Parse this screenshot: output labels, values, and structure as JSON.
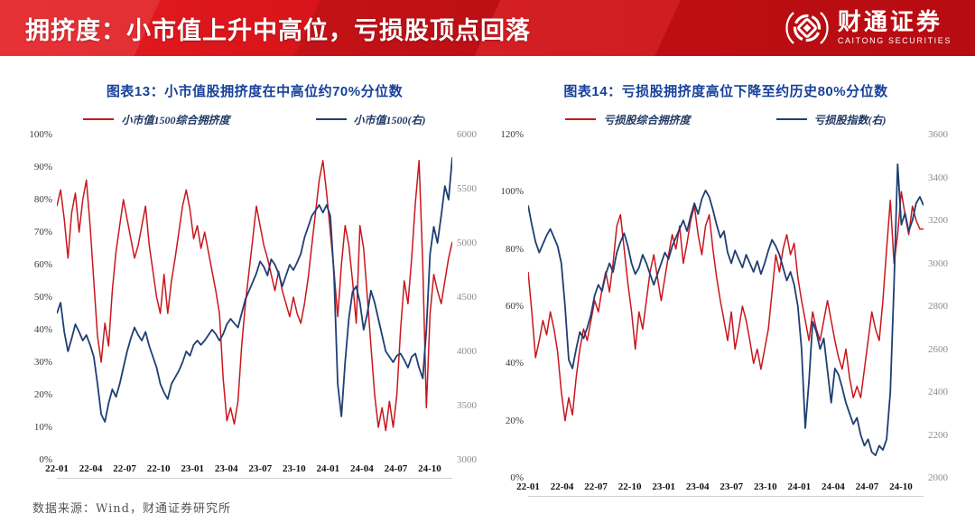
{
  "header": {
    "title": "拥挤度：小市值上升中高位，亏损股顶点回落",
    "logo_cn": "财通证券",
    "logo_en": "CAITONG SECURITIES"
  },
  "footer": {
    "source": "数据来源：Wind，财通证券研究所"
  },
  "colors": {
    "header_red": "#D01015",
    "title_blue": "#16419C",
    "line_red": "#C9161D",
    "line_blue": "#1F3F73",
    "axis_gray": "#8C8C8C",
    "legend_text": "#1F3864"
  },
  "chart_data": [
    {
      "type": "line",
      "title": "图表13：小市值股拥挤度在中高位约70%分位数",
      "legend_position": "top",
      "grid": false,
      "x_ticks": [
        "22-01",
        "22-04",
        "22-07",
        "22-10",
        "23-01",
        "23-04",
        "23-07",
        "23-10",
        "24-01",
        "24-04",
        "24-07",
        "24-10"
      ],
      "y_left": {
        "min": 0,
        "max": 100,
        "unit": "%",
        "ticks": [
          "100%",
          "90%",
          "80%",
          "70%",
          "60%",
          "50%",
          "40%",
          "30%",
          "20%",
          "10%",
          "0%"
        ]
      },
      "y_right": {
        "min": 3000,
        "max": 6000,
        "ticks": [
          "6000",
          "5500",
          "5000",
          "4500",
          "4000",
          "3500",
          "3000"
        ]
      },
      "series": [
        {
          "name": "小市值1500综合拥挤度",
          "color": "#C9161D",
          "axis": "left",
          "values": [
            78,
            83,
            74,
            62,
            76,
            82,
            70,
            80,
            86,
            72,
            55,
            38,
            30,
            42,
            35,
            52,
            64,
            72,
            80,
            74,
            68,
            62,
            66,
            72,
            78,
            66,
            58,
            50,
            45,
            57,
            45,
            55,
            62,
            70,
            78,
            83,
            77,
            68,
            72,
            65,
            70,
            64,
            58,
            52,
            45,
            25,
            12,
            16,
            11,
            18,
            35,
            48,
            58,
            68,
            78,
            72,
            66,
            62,
            57,
            52,
            58,
            52,
            48,
            44,
            50,
            45,
            42,
            48,
            56,
            66,
            76,
            86,
            92,
            82,
            70,
            58,
            44,
            60,
            72,
            66,
            55,
            42,
            72,
            65,
            50,
            35,
            20,
            10,
            16,
            9,
            18,
            10,
            20,
            40,
            55,
            48,
            62,
            79,
            92,
            60,
            16,
            45,
            57,
            52,
            48,
            55,
            62,
            67
          ]
        },
        {
          "name": "小市值1500(右)",
          "color": "#1F3F73",
          "axis": "right",
          "values": [
            4350,
            4450,
            4180,
            4000,
            4120,
            4250,
            4180,
            4100,
            4150,
            4060,
            3950,
            3700,
            3420,
            3350,
            3520,
            3650,
            3580,
            3700,
            3850,
            4000,
            4120,
            4220,
            4150,
            4100,
            4180,
            4050,
            3950,
            3850,
            3700,
            3620,
            3560,
            3700,
            3760,
            3820,
            3900,
            4000,
            3960,
            4060,
            4100,
            4060,
            4100,
            4150,
            4200,
            4160,
            4100,
            4160,
            4250,
            4300,
            4260,
            4220,
            4350,
            4480,
            4560,
            4640,
            4720,
            4830,
            4780,
            4700,
            4850,
            4800,
            4720,
            4600,
            4700,
            4800,
            4750,
            4820,
            4900,
            5050,
            5150,
            5250,
            5300,
            5350,
            5280,
            5350,
            5250,
            4700,
            3700,
            3400,
            3900,
            4300,
            4550,
            4600,
            4450,
            4200,
            4350,
            4560,
            4450,
            4300,
            4150,
            4000,
            3950,
            3900,
            3960,
            3980,
            3920,
            3850,
            3950,
            3980,
            3850,
            3750,
            4200,
            4900,
            5150,
            5000,
            5250,
            5525,
            5400,
            5790
          ]
        }
      ]
    },
    {
      "type": "line",
      "title": "图表14：亏损股拥挤度高位下降至约历史80%分位数",
      "legend_position": "top",
      "grid": false,
      "x_ticks": [
        "22-01",
        "22-04",
        "22-07",
        "22-10",
        "23-01",
        "23-04",
        "23-07",
        "23-10",
        "24-01",
        "24-04",
        "24-07",
        "24-10"
      ],
      "y_left": {
        "min": 0,
        "max": 120,
        "unit": "%",
        "ticks": [
          "120%",
          "100%",
          "80%",
          "60%",
          "40%",
          "20%",
          "0%"
        ]
      },
      "y_right": {
        "min": 2000,
        "max": 3600,
        "ticks": [
          "3600",
          "3400",
          "3200",
          "3000",
          "2800",
          "2600",
          "2400",
          "2200",
          "2000"
        ]
      },
      "series": [
        {
          "name": "亏损股综合拥挤度",
          "color": "#C9161D",
          "axis": "left",
          "values": [
            72,
            58,
            42,
            48,
            55,
            50,
            58,
            52,
            44,
            30,
            20,
            28,
            22,
            35,
            45,
            52,
            48,
            55,
            62,
            58,
            66,
            72,
            65,
            75,
            88,
            92,
            80,
            68,
            58,
            45,
            58,
            52,
            62,
            72,
            78,
            70,
            62,
            70,
            78,
            85,
            80,
            88,
            75,
            82,
            90,
            95,
            85,
            78,
            88,
            92,
            80,
            70,
            62,
            55,
            48,
            58,
            45,
            52,
            60,
            55,
            48,
            40,
            45,
            38,
            45,
            52,
            65,
            78,
            72,
            80,
            85,
            78,
            82,
            70,
            62,
            55,
            48,
            58,
            52,
            48,
            55,
            62,
            55,
            48,
            42,
            38,
            45,
            35,
            28,
            32,
            28,
            38,
            48,
            58,
            52,
            48,
            62,
            80,
            97,
            75,
            85,
            100,
            92,
            85,
            95,
            90,
            87,
            87
          ]
        },
        {
          "name": "亏损股指数(右)",
          "color": "#1F3F73",
          "axis": "right",
          "values": [
            3270,
            3180,
            3100,
            3050,
            3090,
            3130,
            3160,
            3120,
            3080,
            3000,
            2800,
            2550,
            2510,
            2600,
            2680,
            2650,
            2700,
            2760,
            2850,
            2900,
            2870,
            2950,
            3000,
            2960,
            3050,
            3100,
            3140,
            3080,
            3000,
            2950,
            2980,
            3040,
            3000,
            2950,
            2900,
            2950,
            3000,
            3050,
            3020,
            3080,
            3120,
            3160,
            3200,
            3150,
            3220,
            3280,
            3230,
            3300,
            3340,
            3310,
            3250,
            3180,
            3120,
            3150,
            3050,
            3000,
            3060,
            3020,
            2980,
            3040,
            3000,
            2960,
            3010,
            2950,
            3000,
            3060,
            3110,
            3080,
            3040,
            2980,
            2920,
            2960,
            2900,
            2800,
            2600,
            2232,
            2450,
            2728,
            2680,
            2600,
            2650,
            2500,
            2350,
            2510,
            2480,
            2420,
            2350,
            2300,
            2250,
            2280,
            2200,
            2150,
            2180,
            2120,
            2105,
            2150,
            2130,
            2180,
            2400,
            2900,
            3462,
            3180,
            3234,
            3150,
            3200,
            3280,
            3310,
            3270
          ]
        }
      ]
    }
  ]
}
